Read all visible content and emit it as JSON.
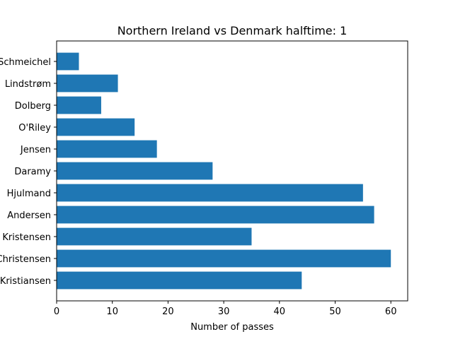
{
  "chart_data": {
    "type": "bar",
    "orientation": "horizontal",
    "title": "Northern Ireland vs Denmark halftime: 1",
    "xlabel": "Number of passes",
    "ylabel": "",
    "categories": [
      "Kristiansen",
      "Christensen",
      "Kristensen",
      "Andersen",
      "Hjulmand",
      "Daramy",
      "Jensen",
      "O'Riley",
      "Dolberg",
      "Lindstrøm",
      "Schmeichel"
    ],
    "values": [
      44,
      60,
      35,
      57,
      55,
      28,
      18,
      14,
      8,
      11,
      4
    ],
    "xlim": [
      0,
      63
    ],
    "xticks": [
      0,
      10,
      20,
      30,
      40,
      50,
      60
    ],
    "grid": false,
    "bar_color": "#1f77b4"
  }
}
